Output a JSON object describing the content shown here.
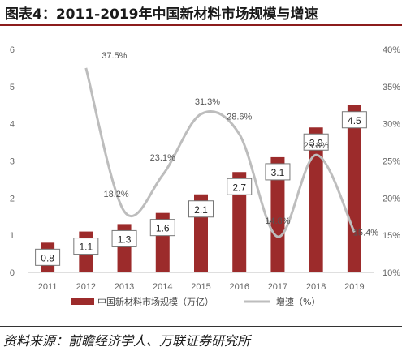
{
  "title": "图表4：2011-2019年中国新材料市场规模与增速",
  "source": "资料来源：前瞻经济学人、万联证券研究所",
  "chart_data": {
    "type": "bar+line",
    "categories": [
      "2011",
      "2012",
      "2013",
      "2014",
      "2015",
      "2016",
      "2017",
      "2018",
      "2019"
    ],
    "bars": {
      "name": "中国新材料市场规模（万亿）",
      "values": [
        0.8,
        1.1,
        1.3,
        1.6,
        2.1,
        2.7,
        3.1,
        3.9,
        4.5
      ],
      "labels": [
        "0.8",
        "1.1",
        "1.3",
        "1.6",
        "2.1",
        "2.7",
        "3.1",
        "3.9",
        "4.5"
      ],
      "color": "#9c2b2b",
      "ylim": [
        0,
        6
      ],
      "yticks": [
        "0",
        "1",
        "2",
        "3",
        "4",
        "5",
        "6"
      ]
    },
    "line": {
      "name": "增速（%）",
      "values": [
        null,
        37.5,
        18.2,
        23.1,
        31.3,
        28.6,
        14.8,
        25.8,
        15.4
      ],
      "labels": [
        "",
        "37.5%",
        "18.2%",
        "23.1%",
        "31.3%",
        "28.6%",
        "14.8%",
        "25.8%",
        "15.4%"
      ],
      "color": "#bdbdbd",
      "ylim": [
        10,
        40
      ],
      "yticks": [
        "10%",
        "15%",
        "20%",
        "25%",
        "30%",
        "35%",
        "40%"
      ]
    },
    "legend_position": "bottom"
  }
}
